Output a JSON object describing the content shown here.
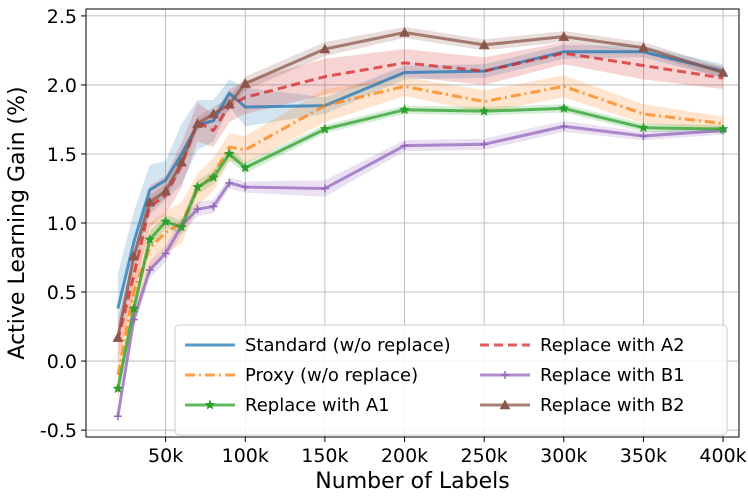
{
  "chart_data": {
    "type": "line",
    "title": "",
    "xlabel": "Number of Labels",
    "ylabel": "Active Learning Gain (%)",
    "xlim": [
      0,
      410000
    ],
    "ylim": [
      -0.55,
      2.55
    ],
    "grid": true,
    "legend_position": "bottom-right",
    "x_ticks": [
      50000,
      100000,
      150000,
      200000,
      250000,
      300000,
      350000,
      400000
    ],
    "x_tick_labels": [
      "50k",
      "100k",
      "150k",
      "200k",
      "250k",
      "300k",
      "350k",
      "400k"
    ],
    "y_ticks": [
      -0.5,
      0.0,
      0.5,
      1.0,
      1.5,
      2.0,
      2.5
    ],
    "y_tick_labels": [
      "-0.5",
      "0.0",
      "0.5",
      "1.0",
      "1.5",
      "2.0",
      "2.5"
    ],
    "x": [
      20000,
      30000,
      40000,
      50000,
      60000,
      70000,
      80000,
      90000,
      100000,
      150000,
      200000,
      250000,
      300000,
      350000,
      400000
    ],
    "series": [
      {
        "name": "Standard (w/o replace)",
        "color": "#1f77b4",
        "dash": "solid",
        "marker": "none",
        "values": [
          0.38,
          0.86,
          1.24,
          1.31,
          1.5,
          1.71,
          1.74,
          1.94,
          1.84,
          1.85,
          2.09,
          2.1,
          2.24,
          2.24,
          2.1
        ],
        "band": [
          0.25,
          0.22,
          0.18,
          0.14,
          0.22,
          0.18,
          0.15,
          0.1,
          0.14,
          0.06,
          0.05,
          0.05,
          0.05,
          0.04,
          0.05
        ]
      },
      {
        "name": "Replace with A2",
        "color": "#d62728",
        "dash": "dashed",
        "marker": "none",
        "values": [
          0.15,
          0.62,
          1.12,
          1.2,
          1.42,
          1.73,
          1.67,
          1.85,
          1.91,
          2.06,
          2.16,
          2.1,
          2.23,
          2.14,
          2.05
        ],
        "band": [
          0.15,
          0.15,
          0.15,
          0.14,
          0.16,
          0.14,
          0.12,
          0.12,
          0.12,
          0.13,
          0.1,
          0.1,
          0.08,
          0.1,
          0.08
        ]
      },
      {
        "name": "Proxy (w/o replace)",
        "color": "#ff7f0e",
        "dash": "dashdot",
        "marker": "none",
        "values": [
          -0.1,
          0.5,
          0.82,
          0.93,
          1.0,
          1.24,
          1.35,
          1.55,
          1.53,
          1.85,
          1.99,
          1.88,
          1.99,
          1.79,
          1.72
        ],
        "band": [
          0.18,
          0.2,
          0.18,
          0.15,
          0.15,
          0.12,
          0.12,
          0.1,
          0.1,
          0.12,
          0.07,
          0.08,
          0.08,
          0.07,
          0.05
        ]
      },
      {
        "name": "Replace with B1",
        "color": "#9467bd",
        "dash": "solid",
        "marker": "plus",
        "values": [
          -0.4,
          0.3,
          0.66,
          0.78,
          0.98,
          1.1,
          1.12,
          1.29,
          1.26,
          1.25,
          1.56,
          1.57,
          1.7,
          1.63,
          1.67
        ],
        "band": [
          0.05,
          0.06,
          0.06,
          0.06,
          0.06,
          0.05,
          0.05,
          0.04,
          0.04,
          0.06,
          0.04,
          0.04,
          0.04,
          0.03,
          0.03
        ]
      },
      {
        "name": "Replace with A1",
        "color": "#2ca02c",
        "dash": "solid",
        "marker": "star",
        "values": [
          -0.2,
          0.38,
          0.88,
          1.01,
          0.97,
          1.26,
          1.33,
          1.5,
          1.4,
          1.68,
          1.82,
          1.81,
          1.83,
          1.69,
          1.68
        ],
        "band": [
          0.07,
          0.06,
          0.06,
          0.05,
          0.05,
          0.05,
          0.05,
          0.05,
          0.04,
          0.03,
          0.03,
          0.03,
          0.03,
          0.03,
          0.03
        ]
      },
      {
        "name": "Replace with B2",
        "color": "#8c564b",
        "dash": "solid",
        "marker": "triangle",
        "values": [
          0.17,
          0.76,
          1.15,
          1.23,
          1.44,
          1.72,
          1.79,
          1.86,
          2.01,
          2.26,
          2.38,
          2.29,
          2.35,
          2.27,
          2.09
        ],
        "band": [
          0.05,
          0.05,
          0.05,
          0.05,
          0.05,
          0.05,
          0.05,
          0.05,
          0.05,
          0.05,
          0.04,
          0.04,
          0.04,
          0.04,
          0.04
        ]
      }
    ],
    "legend_order": [
      0,
      1,
      2,
      3,
      4,
      5
    ]
  }
}
